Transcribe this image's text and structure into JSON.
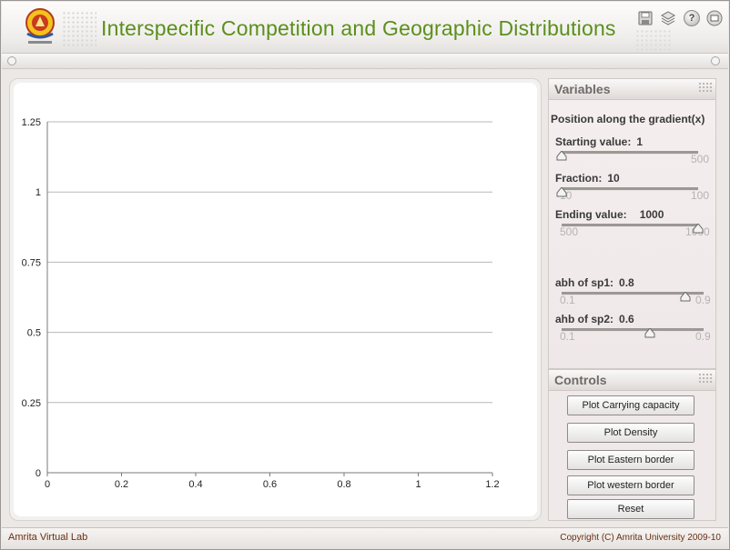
{
  "header": {
    "title": "Interspecific Competition and Geographic Distributions",
    "logo_name": "amrita-university-emblem",
    "icons": [
      "save-icon",
      "layers-icon",
      "help-icon",
      "fullscreen-icon"
    ],
    "help_glyph": "?"
  },
  "variables": {
    "title": "Variables",
    "section_label": "Position along the gradient(x)",
    "starting": {
      "label": "Starting value:",
      "value": "1",
      "min": "",
      "max": "500",
      "level": 0.0
    },
    "fraction": {
      "label": "Fraction:",
      "value": "10",
      "min": "10",
      "max": "100",
      "level": 0.0
    },
    "ending": {
      "label": "Ending value:",
      "value": "1000",
      "min": "500",
      "max": "1000",
      "level": 1.0
    },
    "abh_sp1": {
      "label": "abh of sp1:",
      "value": "0.8",
      "min": "0.1",
      "max": "0.9",
      "level": 0.875
    },
    "ahb_sp2": {
      "label": "ahb of sp2:",
      "value": "0.6",
      "min": "0.1",
      "max": "0.9",
      "level": 0.625
    }
  },
  "controls": {
    "title": "Controls",
    "buttons": [
      "Plot Carrying capacity",
      "Plot Density",
      "Plot Eastern border",
      "Plot western border",
      "Reset"
    ]
  },
  "footer": {
    "left": "Amrita Virtual Lab",
    "right": "Copyright (C) Amrita University 2009-10"
  },
  "colors": {
    "title_green": "#5b8f1c",
    "footer_text": "#6a2f12",
    "grid": "#b8b8b8"
  },
  "chart_data": {
    "type": "line",
    "series": [],
    "xlim": [
      0,
      1.2
    ],
    "ylim": [
      0,
      1.25
    ],
    "x_ticks": [
      "0",
      "0.2",
      "0.4",
      "0.6",
      "0.8",
      "1",
      "1.2"
    ],
    "y_ticks": [
      "0",
      "0.25",
      "0.5",
      "0.75",
      "1",
      "1.25"
    ],
    "grid": "horizontal",
    "title": "",
    "xlabel": "",
    "ylabel": ""
  }
}
